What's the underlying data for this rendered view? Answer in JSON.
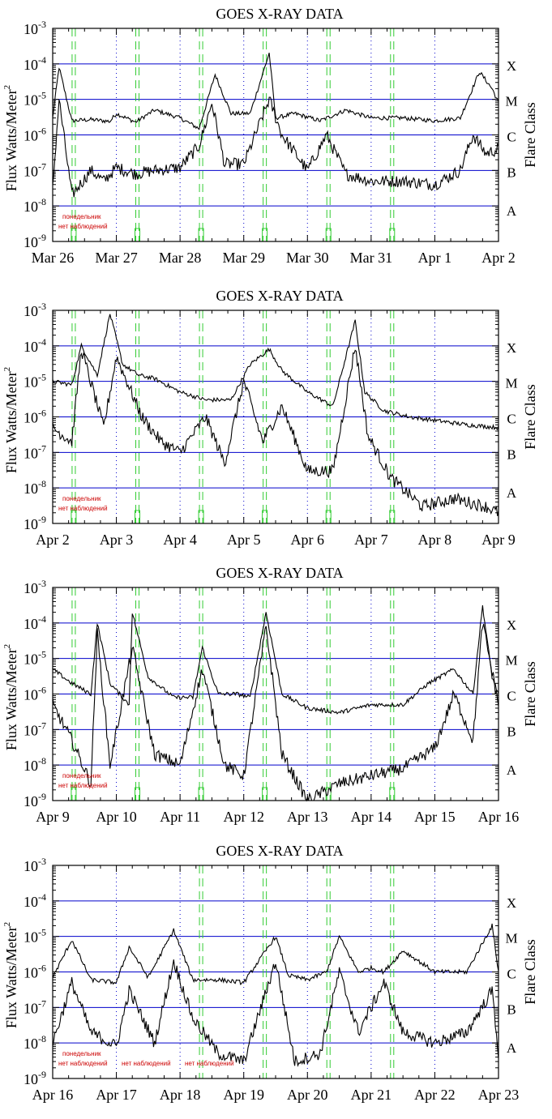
{
  "panels": [
    {
      "title": "GOES X-RAY DATA",
      "ylabel": "Flux Watts/Meter",
      "ylabel_sup": "2",
      "right_label": "Flare Class",
      "classes": [
        "X",
        "M",
        "C",
        "B",
        "A"
      ],
      "y_ticks": [
        {
          "base": "10",
          "exp": "-3"
        },
        {
          "base": "10",
          "exp": "-4"
        },
        {
          "base": "10",
          "exp": "-5"
        },
        {
          "base": "10",
          "exp": "-6"
        },
        {
          "base": "10",
          "exp": "-7"
        },
        {
          "base": "10",
          "exp": "-8"
        },
        {
          "base": "10",
          "exp": "-9"
        }
      ],
      "x_ticks": [
        "Mar 26",
        "Mar 27",
        "Mar 28",
        "Mar 29",
        "Mar 30",
        "Mar 31",
        "Apr 1",
        "Apr 2"
      ],
      "notes": [
        "понедельник",
        "нет наблюдений"
      ]
    },
    {
      "title": "GOES X-RAY DATA",
      "ylabel": "Flux Watts/Meter",
      "ylabel_sup": "2",
      "right_label": "Flare Class",
      "classes": [
        "X",
        "M",
        "C",
        "B",
        "A"
      ],
      "y_ticks": [
        {
          "base": "10",
          "exp": "-3"
        },
        {
          "base": "10",
          "exp": "-4"
        },
        {
          "base": "10",
          "exp": "-5"
        },
        {
          "base": "10",
          "exp": "-6"
        },
        {
          "base": "10",
          "exp": "-7"
        },
        {
          "base": "10",
          "exp": "-8"
        },
        {
          "base": "10",
          "exp": "-9"
        }
      ],
      "x_ticks": [
        "Apr 2",
        "Apr 3",
        "Apr 4",
        "Apr 5",
        "Apr 6",
        "Apr 7",
        "Apr 8",
        "Apr 9"
      ],
      "notes": [
        "понедельник",
        "нет наблюдений"
      ]
    },
    {
      "title": "GOES X-RAY DATA",
      "ylabel": "Flux Watts/Meter",
      "ylabel_sup": "2",
      "right_label": "Flare Class",
      "classes": [
        "X",
        "M",
        "C",
        "B",
        "A"
      ],
      "y_ticks": [
        {
          "base": "10",
          "exp": "-3"
        },
        {
          "base": "10",
          "exp": "-4"
        },
        {
          "base": "10",
          "exp": "-5"
        },
        {
          "base": "10",
          "exp": "-6"
        },
        {
          "base": "10",
          "exp": "-7"
        },
        {
          "base": "10",
          "exp": "-8"
        },
        {
          "base": "10",
          "exp": "-9"
        }
      ],
      "x_ticks": [
        "Apr 9",
        "Apr 10",
        "Apr 11",
        "Apr 12",
        "Apr 13",
        "Apr 14",
        "Apr 15",
        "Apr 16"
      ],
      "notes": [
        "понедельник",
        "нет наблюдений"
      ]
    },
    {
      "title": "GOES X-RAY DATA",
      "ylabel": "Flux Watts/Meter",
      "ylabel_sup": "2",
      "right_label": "Flare Class",
      "classes": [
        "X",
        "M",
        "C",
        "B",
        "A"
      ],
      "y_ticks": [
        {
          "base": "10",
          "exp": "-3"
        },
        {
          "base": "10",
          "exp": "-4"
        },
        {
          "base": "10",
          "exp": "-5"
        },
        {
          "base": "10",
          "exp": "-6"
        },
        {
          "base": "10",
          "exp": "-7"
        },
        {
          "base": "10",
          "exp": "-8"
        },
        {
          "base": "10",
          "exp": "-9"
        }
      ],
      "x_ticks": [
        "Apr 16",
        "Apr 17",
        "Apr 18",
        "Apr 19",
        "Apr 20",
        "Apr 21",
        "Apr 22",
        "Apr 23"
      ],
      "notes": [
        "понедельник",
        "нет наблюдений",
        "нет наблюдений",
        "нет наблюдений"
      ]
    }
  ],
  "chart_data": [
    {
      "type": "line",
      "title": "GOES X-RAY DATA",
      "ylabel": "Flux Watts/Meter^2",
      "right_axis_label": "Flare Class",
      "yscale": "log",
      "ylim": [
        1e-09,
        0.001
      ],
      "x_range_days": [
        "Mar 26",
        "Apr 2"
      ],
      "class_levels": {
        "X": 0.0001,
        "M": 1e-05,
        "C": 1e-06,
        "B": 1e-07,
        "A": 1e-08
      },
      "green_marker_days": [
        0.33,
        1.33,
        2.33,
        3.33,
        4.33,
        5.33
      ],
      "series": [
        {
          "points": [
            [
              0,
              3e-06
            ],
            [
              0.1,
              8e-05
            ],
            [
              0.3,
              2.5e-06
            ],
            [
              0.6,
              2.7e-06
            ],
            [
              0.9,
              2.4e-06
            ],
            [
              1.0,
              4e-06
            ],
            [
              1.3,
              2.3e-06
            ],
            [
              1.6,
              5e-06
            ],
            [
              2.0,
              3e-06
            ],
            [
              2.3,
              1.5e-06
            ],
            [
              2.55,
              5e-05
            ],
            [
              2.8,
              4e-06
            ],
            [
              3.1,
              4e-06
            ],
            [
              3.4,
              0.0002
            ],
            [
              3.5,
              3e-06
            ],
            [
              3.8,
              4e-06
            ],
            [
              4.2,
              2.5e-06
            ],
            [
              4.6,
              5e-06
            ],
            [
              5.0,
              3e-06
            ],
            [
              5.5,
              3e-06
            ],
            [
              6.0,
              2.5e-06
            ],
            [
              6.4,
              3e-06
            ],
            [
              6.7,
              6e-05
            ],
            [
              6.9,
              2e-05
            ],
            [
              7.0,
              8e-06
            ]
          ]
        },
        {
          "points": [
            [
              0,
              3e-08
            ],
            [
              0.1,
              1e-05
            ],
            [
              0.3,
              2e-08
            ],
            [
              0.6,
              1e-07
            ],
            [
              0.8,
              5e-08
            ],
            [
              1.0,
              1.2e-07
            ],
            [
              1.3,
              8e-08
            ],
            [
              1.6,
              1e-07
            ],
            [
              2.0,
              1.2e-07
            ],
            [
              2.3,
              5e-07
            ],
            [
              2.5,
              8e-06
            ],
            [
              2.7,
              1.5e-07
            ],
            [
              3.0,
              1.5e-07
            ],
            [
              3.4,
              1e-05
            ],
            [
              3.6,
              1e-06
            ],
            [
              4.0,
              1e-07
            ],
            [
              4.3,
              1e-06
            ],
            [
              4.6,
              8e-08
            ],
            [
              5.0,
              5e-08
            ],
            [
              5.5,
              5e-08
            ],
            [
              6.0,
              4e-08
            ],
            [
              6.4,
              1e-07
            ],
            [
              6.6,
              1e-06
            ],
            [
              6.8,
              3e-07
            ],
            [
              7.0,
              4e-07
            ]
          ]
        }
      ]
    },
    {
      "type": "line",
      "title": "GOES X-RAY DATA",
      "ylabel": "Flux Watts/Meter^2",
      "right_axis_label": "Flare Class",
      "yscale": "log",
      "ylim": [
        1e-09,
        0.001
      ],
      "x_range_days": [
        "Apr 2",
        "Apr 9"
      ],
      "class_levels": {
        "X": 0.0001,
        "M": 1e-05,
        "C": 1e-06,
        "B": 1e-07,
        "A": 1e-08
      },
      "green_marker_days": [
        0.33,
        1.33,
        2.33,
        3.33,
        4.33,
        5.33
      ],
      "series": [
        {
          "points": [
            [
              0,
              1e-05
            ],
            [
              0.3,
              8e-06
            ],
            [
              0.45,
              0.0001
            ],
            [
              0.7,
              1.5e-05
            ],
            [
              0.9,
              0.0008
            ],
            [
              1.1,
              3e-05
            ],
            [
              1.35,
              1.5e-05
            ],
            [
              1.6,
              1.2e-05
            ],
            [
              2.0,
              5e-06
            ],
            [
              2.4,
              3e-06
            ],
            [
              2.8,
              3e-06
            ],
            [
              3.1,
              3e-05
            ],
            [
              3.4,
              8e-05
            ],
            [
              3.6,
              2e-05
            ],
            [
              4.0,
              5e-06
            ],
            [
              4.4,
              2e-06
            ],
            [
              4.75,
              0.0005
            ],
            [
              4.9,
              5e-06
            ],
            [
              5.2,
              1.5e-06
            ],
            [
              5.6,
              1e-06
            ],
            [
              6.0,
              8e-07
            ],
            [
              6.5,
              6e-07
            ],
            [
              7.0,
              5e-07
            ]
          ]
        },
        {
          "points": [
            [
              0,
              5e-07
            ],
            [
              0.3,
              2e-07
            ],
            [
              0.45,
              8e-05
            ],
            [
              0.8,
              5e-07
            ],
            [
              1.0,
              5e-05
            ],
            [
              1.4,
              1e-06
            ],
            [
              1.7,
              2e-07
            ],
            [
              2.0,
              1e-07
            ],
            [
              2.4,
              1e-06
            ],
            [
              2.7,
              5e-08
            ],
            [
              3.0,
              1e-05
            ],
            [
              3.3,
              2e-07
            ],
            [
              3.6,
              2e-06
            ],
            [
              4.0,
              3e-08
            ],
            [
              4.4,
              3e-08
            ],
            [
              4.75,
              0.0001
            ],
            [
              4.95,
              3e-07
            ],
            [
              5.3,
              2e-08
            ],
            [
              5.8,
              3e-09
            ],
            [
              6.3,
              5e-09
            ],
            [
              6.8,
              3e-09
            ],
            [
              7.0,
              2e-09
            ]
          ]
        }
      ]
    },
    {
      "type": "line",
      "title": "GOES X-RAY DATA",
      "ylabel": "Flux Watts/Meter^2",
      "right_axis_label": "Flare Class",
      "yscale": "log",
      "ylim": [
        1e-09,
        0.001
      ],
      "x_range_days": [
        "Apr 9",
        "Apr 16"
      ],
      "class_levels": {
        "X": 0.0001,
        "M": 1e-05,
        "C": 1e-06,
        "B": 1e-07,
        "A": 1e-08
      },
      "green_marker_days": [
        0.33,
        1.33,
        2.33,
        3.33,
        4.33,
        5.33
      ],
      "series": [
        {
          "points": [
            [
              0,
              5e-06
            ],
            [
              0.3,
              2e-06
            ],
            [
              0.6,
              1e-06
            ],
            [
              0.7,
              0.0001
            ],
            [
              0.9,
              2e-06
            ],
            [
              1.2,
              5e-07
            ],
            [
              1.25,
              0.0002
            ],
            [
              1.5,
              3e-06
            ],
            [
              1.9,
              8e-07
            ],
            [
              2.2,
              8e-07
            ],
            [
              2.35,
              2e-05
            ],
            [
              2.6,
              1e-06
            ],
            [
              2.9,
              1e-06
            ],
            [
              3.1,
              8e-07
            ],
            [
              3.35,
              0.0002
            ],
            [
              3.6,
              1e-06
            ],
            [
              4.0,
              4e-07
            ],
            [
              4.5,
              3e-07
            ],
            [
              5.0,
              5e-07
            ],
            [
              5.5,
              5e-07
            ],
            [
              5.9,
              2e-06
            ],
            [
              6.3,
              5e-06
            ],
            [
              6.6,
              1e-06
            ],
            [
              6.75,
              0.0003
            ],
            [
              6.9,
              3e-06
            ],
            [
              7.0,
              1e-06
            ]
          ]
        },
        {
          "points": [
            [
              0,
              5e-07
            ],
            [
              0.3,
              5e-08
            ],
            [
              0.6,
              3e-09
            ],
            [
              0.7,
              5e-05
            ],
            [
              0.9,
              1e-08
            ],
            [
              1.25,
              2e-05
            ],
            [
              1.6,
              2e-08
            ],
            [
              2.0,
              1e-08
            ],
            [
              2.35,
              5e-06
            ],
            [
              2.7,
              1e-08
            ],
            [
              3.0,
              5e-09
            ],
            [
              3.35,
              8e-05
            ],
            [
              3.6,
              2e-08
            ],
            [
              4.0,
              1e-09
            ],
            [
              4.5,
              3e-09
            ],
            [
              5.0,
              5e-09
            ],
            [
              5.5,
              8e-09
            ],
            [
              6.0,
              3e-08
            ],
            [
              6.3,
              1e-06
            ],
            [
              6.6,
              5e-08
            ],
            [
              6.75,
              0.0001
            ],
            [
              7.0,
              5e-07
            ]
          ]
        }
      ]
    },
    {
      "type": "line",
      "title": "GOES X-RAY DATA",
      "ylabel": "Flux Watts/Meter^2",
      "right_axis_label": "Flare Class",
      "yscale": "log",
      "ylim": [
        1e-09,
        0.001
      ],
      "x_range_days": [
        "Apr 16",
        "Apr 23"
      ],
      "class_levels": {
        "X": 0.0001,
        "M": 1e-05,
        "C": 1e-06,
        "B": 1e-07,
        "A": 1e-08
      },
      "green_marker_days": [
        2.33,
        3.33,
        4.33,
        5.33
      ],
      "series": [
        {
          "points": [
            [
              0,
              7e-07
            ],
            [
              0.3,
              8e-06
            ],
            [
              0.6,
              6e-07
            ],
            [
              1.0,
              5e-07
            ],
            [
              1.2,
              5e-06
            ],
            [
              1.5,
              7e-07
            ],
            [
              1.9,
              1.5e-05
            ],
            [
              2.2,
              6e-07
            ],
            [
              2.6,
              6e-07
            ],
            [
              3.0,
              5e-07
            ],
            [
              3.5,
              1e-05
            ],
            [
              3.7,
              8e-07
            ],
            [
              4.0,
              6e-07
            ],
            [
              4.3,
              1e-06
            ],
            [
              4.5,
              1e-05
            ],
            [
              4.8,
              1e-06
            ],
            [
              5.0,
              1.3e-06
            ],
            [
              5.2,
              1e-06
            ],
            [
              5.5,
              4e-06
            ],
            [
              6.0,
              1e-06
            ],
            [
              6.5,
              1e-06
            ],
            [
              6.9,
              2e-05
            ],
            [
              7.0,
              1e-06
            ]
          ]
        },
        {
          "points": [
            [
              0,
              1e-08
            ],
            [
              0.3,
              5e-07
            ],
            [
              0.6,
              2e-08
            ],
            [
              1.0,
              8e-09
            ],
            [
              1.2,
              3e-07
            ],
            [
              1.6,
              1e-08
            ],
            [
              1.9,
              2e-06
            ],
            [
              2.2,
              5e-08
            ],
            [
              2.6,
              5e-09
            ],
            [
              3.0,
              3e-09
            ],
            [
              3.5,
              2e-06
            ],
            [
              3.8,
              3e-09
            ],
            [
              4.2,
              5e-09
            ],
            [
              4.5,
              1e-06
            ],
            [
              4.8,
              2e-08
            ],
            [
              5.2,
              5e-07
            ],
            [
              5.5,
              2e-08
            ],
            [
              6.0,
              1e-08
            ],
            [
              6.5,
              2e-08
            ],
            [
              6.9,
              3e-07
            ],
            [
              7.0,
              5e-09
            ]
          ]
        }
      ]
    }
  ]
}
